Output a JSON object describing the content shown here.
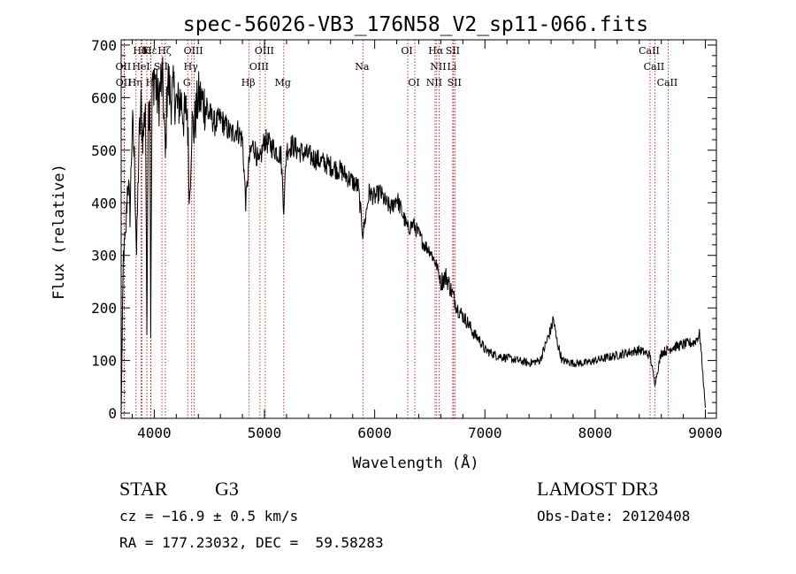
{
  "chart_data": {
    "type": "line",
    "title": "spec-56026-VB3_176N58_V2_sp11-066.fits",
    "xlabel": "Wavelength (Å)",
    "ylabel": "Flux (relative)",
    "xlim": [
      3700,
      9100
    ],
    "ylim": [
      -10,
      710
    ],
    "xticks": [
      4000,
      5000,
      6000,
      7000,
      8000,
      9000
    ],
    "yticks": [
      0,
      100,
      200,
      300,
      400,
      500,
      600,
      700
    ],
    "series": [
      {
        "name": "flux",
        "x": [
          3700,
          3720,
          3740,
          3760,
          3780,
          3800,
          3820,
          3840,
          3860,
          3880,
          3900,
          3920,
          3933,
          3945,
          3960,
          3968,
          3980,
          4000,
          4020,
          4040,
          4060,
          4080,
          4101,
          4120,
          4150,
          4180,
          4210,
          4240,
          4270,
          4300,
          4320,
          4340,
          4360,
          4400,
          4450,
          4500,
          4550,
          4600,
          4650,
          4700,
          4750,
          4800,
          4830,
          4861,
          4890,
          4920,
          4950,
          5000,
          5050,
          5100,
          5150,
          5175,
          5200,
          5250,
          5300,
          5400,
          5500,
          5600,
          5700,
          5800,
          5850,
          5893,
          5950,
          6000,
          6050,
          6100,
          6150,
          6200,
          6250,
          6300,
          6350,
          6400,
          6450,
          6500,
          6563,
          6600,
          6650,
          6700,
          6750,
          6800,
          6850,
          6900,
          6950,
          7000,
          7100,
          7200,
          7300,
          7400,
          7500,
          7550,
          7600,
          7620,
          7650,
          7700,
          7800,
          7900,
          8000,
          8100,
          8200,
          8300,
          8400,
          8498,
          8542,
          8600,
          8662,
          8700,
          8800,
          8900,
          8950,
          9000
        ],
        "values": [
          0,
          300,
          330,
          450,
          380,
          550,
          480,
          300,
          500,
          580,
          520,
          600,
          150,
          560,
          620,
          150,
          600,
          650,
          610,
          590,
          630,
          620,
          480,
          640,
          600,
          610,
          580,
          600,
          560,
          580,
          400,
          550,
          540,
          600,
          590,
          570,
          550,
          560,
          545,
          530,
          540,
          520,
          400,
          480,
          510,
          500,
          470,
          520,
          510,
          500,
          490,
          390,
          500,
          510,
          500,
          490,
          480,
          470,
          460,
          440,
          430,
          340,
          420,
          410,
          420,
          400,
          390,
          410,
          380,
          350,
          360,
          340,
          320,
          310,
          280,
          250,
          260,
          230,
          200,
          185,
          170,
          150,
          140,
          120,
          110,
          105,
          100,
          95,
          100,
          130,
          160,
          180,
          140,
          100,
          95,
          95,
          100,
          105,
          110,
          115,
          120,
          110,
          55,
          115,
          120,
          125,
          130,
          135,
          150,
          10
        ]
      }
    ],
    "line_markers": [
      {
        "label": "Hδ",
        "x": 3880,
        "row": 0
      },
      {
        "label": "K",
        "x": 3933,
        "row": 0
      },
      {
        "label": "Hε",
        "x": 3970,
        "row": 0
      },
      {
        "label": "Hζ",
        "x": 4101,
        "row": 0
      },
      {
        "label": "OIII",
        "x": 4363,
        "row": 0
      },
      {
        "label": "OIII",
        "x": 5007,
        "row": 0
      },
      {
        "label": "OI",
        "x": 6300,
        "row": 0
      },
      {
        "label": "Hα",
        "x": 6563,
        "row": 0
      },
      {
        "label": "SII",
        "x": 6716,
        "row": 0
      },
      {
        "label": "CaII",
        "x": 8498,
        "row": 0
      },
      {
        "label": "OII",
        "x": 3727,
        "row": 1
      },
      {
        "label": "HeI",
        "x": 3889,
        "row": 1
      },
      {
        "label": "SII",
        "x": 4069,
        "row": 1
      },
      {
        "label": "Hγ",
        "x": 4340,
        "row": 1
      },
      {
        "label": "OIII",
        "x": 4959,
        "row": 1
      },
      {
        "label": "Na",
        "x": 5893,
        "row": 1
      },
      {
        "label": "NII",
        "x": 6584,
        "row": 1
      },
      {
        "label": "Li",
        "x": 6708,
        "row": 1
      },
      {
        "label": "CaII",
        "x": 8542,
        "row": 1
      },
      {
        "label": "OII",
        "x": 3729,
        "row": 2
      },
      {
        "label": "Hη",
        "x": 3835,
        "row": 2
      },
      {
        "label": "H",
        "x": 3968,
        "row": 2
      },
      {
        "label": "G",
        "x": 4304,
        "row": 2
      },
      {
        "label": "Hβ",
        "x": 4861,
        "row": 2
      },
      {
        "label": "Mg",
        "x": 5175,
        "row": 2
      },
      {
        "label": "OI",
        "x": 6364,
        "row": 2
      },
      {
        "label": "NII",
        "x": 6548,
        "row": 2
      },
      {
        "label": "SII",
        "x": 6731,
        "row": 2
      },
      {
        "label": "CaII",
        "x": 8662,
        "row": 2
      }
    ]
  },
  "info": {
    "object_class": "STAR",
    "subclass": "G3",
    "survey": "LAMOST DR3",
    "cz": "cz = −16.9 ± 0.5 km/s",
    "obs_date": "Obs-Date: 20120408",
    "radec": "RA = 177.23032, DEC =  59.58283"
  }
}
